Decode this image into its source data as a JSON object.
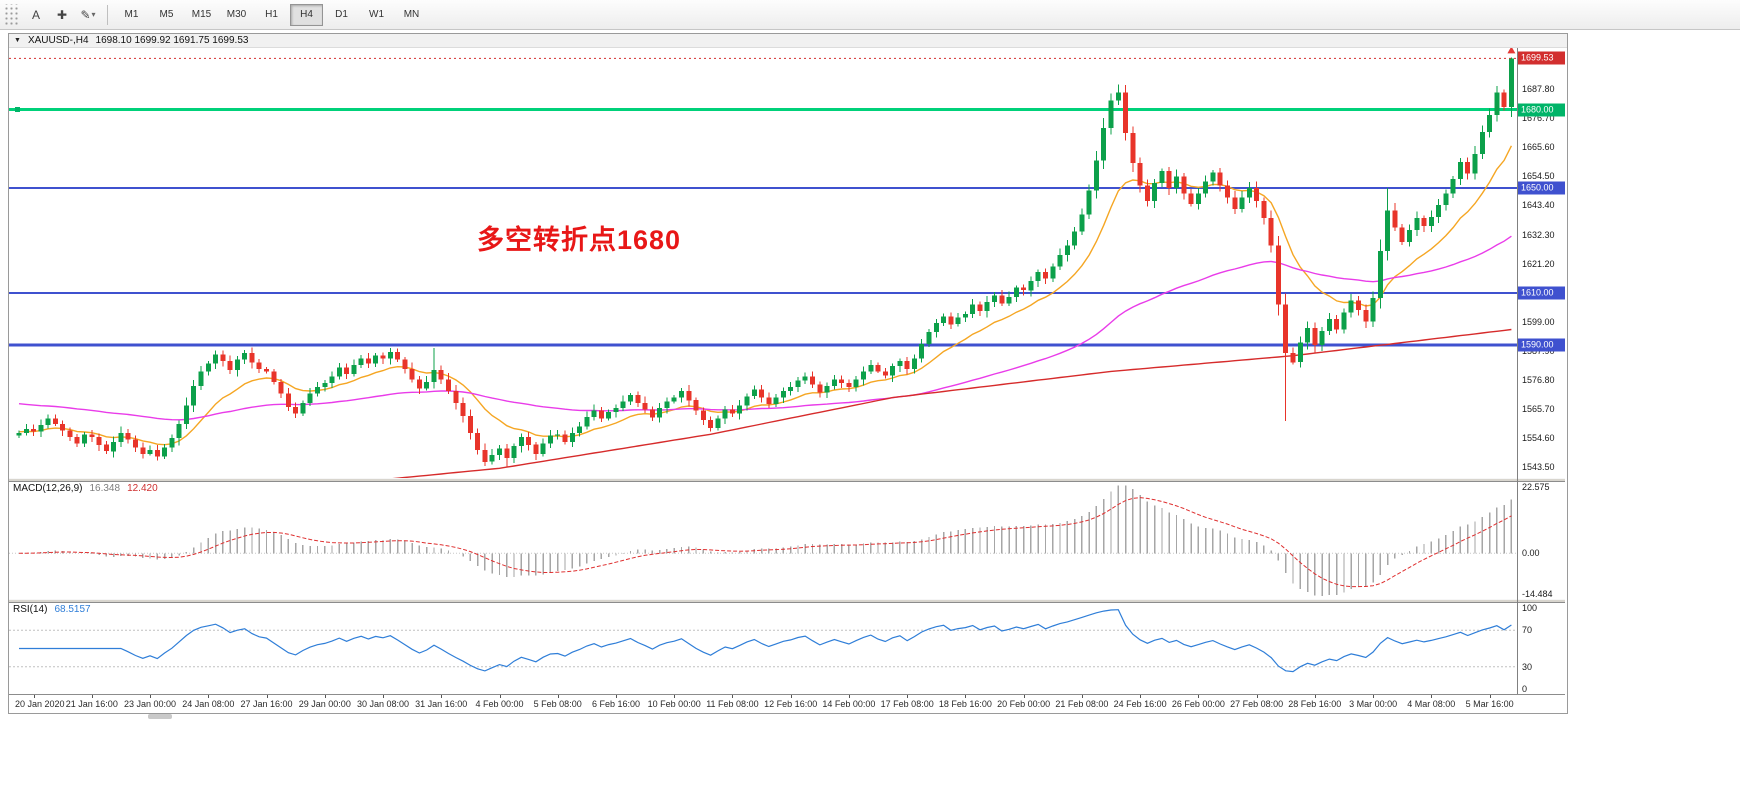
{
  "toolbar": {
    "text_tool_label": "A",
    "crosshair_glyph": "✚",
    "draw_glyph": "✎",
    "caret_glyph": "▾",
    "timeframes": [
      {
        "label": "M1",
        "active": false
      },
      {
        "label": "M5",
        "active": false
      },
      {
        "label": "M15",
        "active": false
      },
      {
        "label": "M30",
        "active": false
      },
      {
        "label": "H1",
        "active": false
      },
      {
        "label": "H4",
        "active": true
      },
      {
        "label": "D1",
        "active": false
      },
      {
        "label": "W1",
        "active": false
      },
      {
        "label": "MN",
        "active": false
      }
    ]
  },
  "chart": {
    "title": {
      "dropdown_glyph": "▼",
      "symbol": "XAUUSD-,H4",
      "ohlc": "1698.10 1699.92 1691.75 1699.53"
    },
    "annotation": {
      "text": "多空转折点1680",
      "color": "#e81717"
    }
  },
  "macd": {
    "name": "MACD(12,26,9)",
    "value": "16.348",
    "signal_value": "12.420",
    "fast": 12,
    "slow": 26,
    "signal": 9,
    "range": {
      "max": 22.575,
      "min": -14.484
    },
    "axis": [
      {
        "label": "22.575",
        "value": 22.575
      },
      {
        "label": "0.00",
        "value": 0
      },
      {
        "label": "-14.484",
        "value": -14.484
      }
    ],
    "colors": {
      "histogram": "#a6a6a6",
      "signal": "#df3030"
    }
  },
  "rsi": {
    "name": "RSI(14)",
    "value": "68.5157",
    "period": 14,
    "axis": [
      {
        "label": "100",
        "value": 100
      },
      {
        "label": "70",
        "value": 70
      },
      {
        "label": "30",
        "value": 30
      },
      {
        "label": "0",
        "value": 0
      }
    ],
    "levels": [
      70,
      30
    ],
    "color": "#2f7ed8"
  },
  "chart_data": {
    "type": "candlestick",
    "symbol": "XAUUSD-",
    "timeframe": "H4",
    "ohlc_display": {
      "open": "1698.10",
      "high": "1699.92",
      "low": "1691.75",
      "close": "1699.53"
    },
    "price_axis": {
      "visible_range": [
        1539.3,
        1703.5
      ],
      "ticks": [
        "1687.80",
        "1676.70",
        "1665.60",
        "1654.50",
        "1643.40",
        "1632.30",
        "1621.20",
        "1610.10",
        "1599.00",
        "1587.90",
        "1576.80",
        "1565.70",
        "1554.60",
        "1543.50"
      ]
    },
    "current_price": {
      "label": "1699.53",
      "value": 1699.53,
      "color": "#d22f2f"
    },
    "levels": [
      {
        "label": "1680.00",
        "value": 1680.0,
        "color": "#00b468",
        "line_color": "#00d17a",
        "width": 3
      },
      {
        "label": "1650.00",
        "value": 1650.0,
        "color": "#3f51cf",
        "line_color": "#3f51cf",
        "width": 2
      },
      {
        "label": "1610.00",
        "value": 1610.0,
        "color": "#3f51cf",
        "line_color": "#3f51cf",
        "width": 2
      },
      {
        "label": "1590.00",
        "value": 1590.0,
        "color": "#3f51cf",
        "line_color": "#3f51cf",
        "width": 3
      }
    ],
    "up_color": "#0ca04a",
    "down_color": "#e8342a",
    "first_open": 1555.5,
    "closes": [
      1556.5,
      1558,
      1557,
      1559.5,
      1562,
      1560,
      1557.5,
      1555,
      1552.5,
      1556,
      1555,
      1552,
      1549.5,
      1553,
      1556.5,
      1554,
      1551,
      1548.5,
      1550,
      1547.5,
      1551,
      1554.5,
      1560,
      1567,
      1574.5,
      1580,
      1583,
      1586.5,
      1584,
      1580.5,
      1584.5,
      1587,
      1583.5,
      1581,
      1580,
      1576,
      1571.5,
      1566.5,
      1564,
      1568,
      1571.5,
      1574,
      1575.5,
      1578,
      1581.5,
      1579,
      1582.5,
      1585,
      1583,
      1586,
      1585,
      1587.5,
      1584.5,
      1581,
      1577,
      1573.5,
      1576,
      1580.5,
      1577,
      1572.5,
      1568,
      1563,
      1556.5,
      1550,
      1545.5,
      1548,
      1550.5,
      1547,
      1551.5,
      1555,
      1552,
      1548.5,
      1552.5,
      1555.5,
      1556,
      1553,
      1556.5,
      1559,
      1562.5,
      1565,
      1562,
      1564.5,
      1566,
      1568.5,
      1571,
      1568,
      1565.5,
      1562.5,
      1566,
      1568.5,
      1570,
      1572.5,
      1569,
      1565,
      1561.5,
      1558.5,
      1562,
      1565.5,
      1564,
      1567,
      1570.5,
      1573,
      1570,
      1567.5,
      1570,
      1572.5,
      1574,
      1576.5,
      1578,
      1575,
      1572,
      1574.5,
      1577,
      1575.5,
      1574,
      1577,
      1580,
      1582.5,
      1580,
      1578.5,
      1582,
      1584,
      1581,
      1585,
      1590.5,
      1595,
      1598.5,
      1601,
      1598,
      1600.5,
      1602,
      1605.5,
      1603,
      1606.5,
      1609,
      1606,
      1608.5,
      1612,
      1611,
      1614.5,
      1618,
      1615.5,
      1620,
      1624.5,
      1628,
      1633.5,
      1640,
      1649,
      1660.5,
      1673,
      1683.5,
      1686.5,
      1671,
      1659.5,
      1651,
      1645,
      1652,
      1656.5,
      1650,
      1654.5,
      1648,
      1644,
      1648,
      1652.5,
      1656,
      1651,
      1646.5,
      1642,
      1646.5,
      1650,
      1645,
      1638.5,
      1628,
      1605.5,
      1587,
      1583.5,
      1591,
      1596.5,
      1590,
      1595.5,
      1600,
      1596,
      1602.5,
      1607,
      1603.5,
      1599,
      1608,
      1626,
      1641.5,
      1635,
      1629.5,
      1634,
      1638.5,
      1635.5,
      1639,
      1643.5,
      1648,
      1653.5,
      1660,
      1655.5,
      1663,
      1671.5,
      1678,
      1686.5,
      1681,
      1699.5
    ],
    "wick_overrides": {
      "57": {
        "high": 1589.0
      },
      "64": {
        "low": 1543.8
      },
      "67": {
        "low": 1543.5
      },
      "151": {
        "high": 1689.5
      },
      "174": {
        "low": 1561.0
      },
      "188": {
        "high": 1650.0
      },
      "205": {
        "high": 1699.9
      }
    },
    "moving_averages": [
      {
        "name": "ma-fast-orange",
        "style": "ema",
        "period": 13,
        "seed": 1557,
        "color": "#f5a623"
      },
      {
        "name": "ma-mid-magenta",
        "style": "ema",
        "period": 72,
        "seed": 1568,
        "color": "#e93ce9"
      },
      {
        "name": "ma-slow-red",
        "style": "anchors",
        "color": "#d62b2b",
        "points": [
          [
            0,
            1527
          ],
          [
            40,
            1536
          ],
          [
            66,
            1543
          ],
          [
            95,
            1556
          ],
          [
            120,
            1570
          ],
          [
            150,
            1580
          ],
          [
            175,
            1586
          ],
          [
            190,
            1591
          ],
          [
            205,
            1596
          ]
        ]
      }
    ],
    "x_label_first_candle": 2,
    "x_label_candle_step": 8,
    "x_labels": [
      "20 Jan 2020",
      "21 Jan 16:00",
      "23 Jan 00:00",
      "24 Jan 08:00",
      "27 Jan 16:00",
      "29 Jan 00:00",
      "30 Jan 08:00",
      "31 Jan 16:00",
      "4 Feb 00:00",
      "5 Feb 08:00",
      "6 Feb 16:00",
      "10 Feb 00:00",
      "11 Feb 08:00",
      "12 Feb 16:00",
      "14 Feb 00:00",
      "17 Feb 08:00",
      "18 Feb 16:00",
      "20 Feb 00:00",
      "21 Feb 08:00",
      "24 Feb 16:00",
      "26 Feb 00:00",
      "27 Feb 08:00",
      "28 Feb 16:00",
      "3 Mar 00:00",
      "4 Mar 08:00",
      "5 Mar 16:00"
    ]
  }
}
